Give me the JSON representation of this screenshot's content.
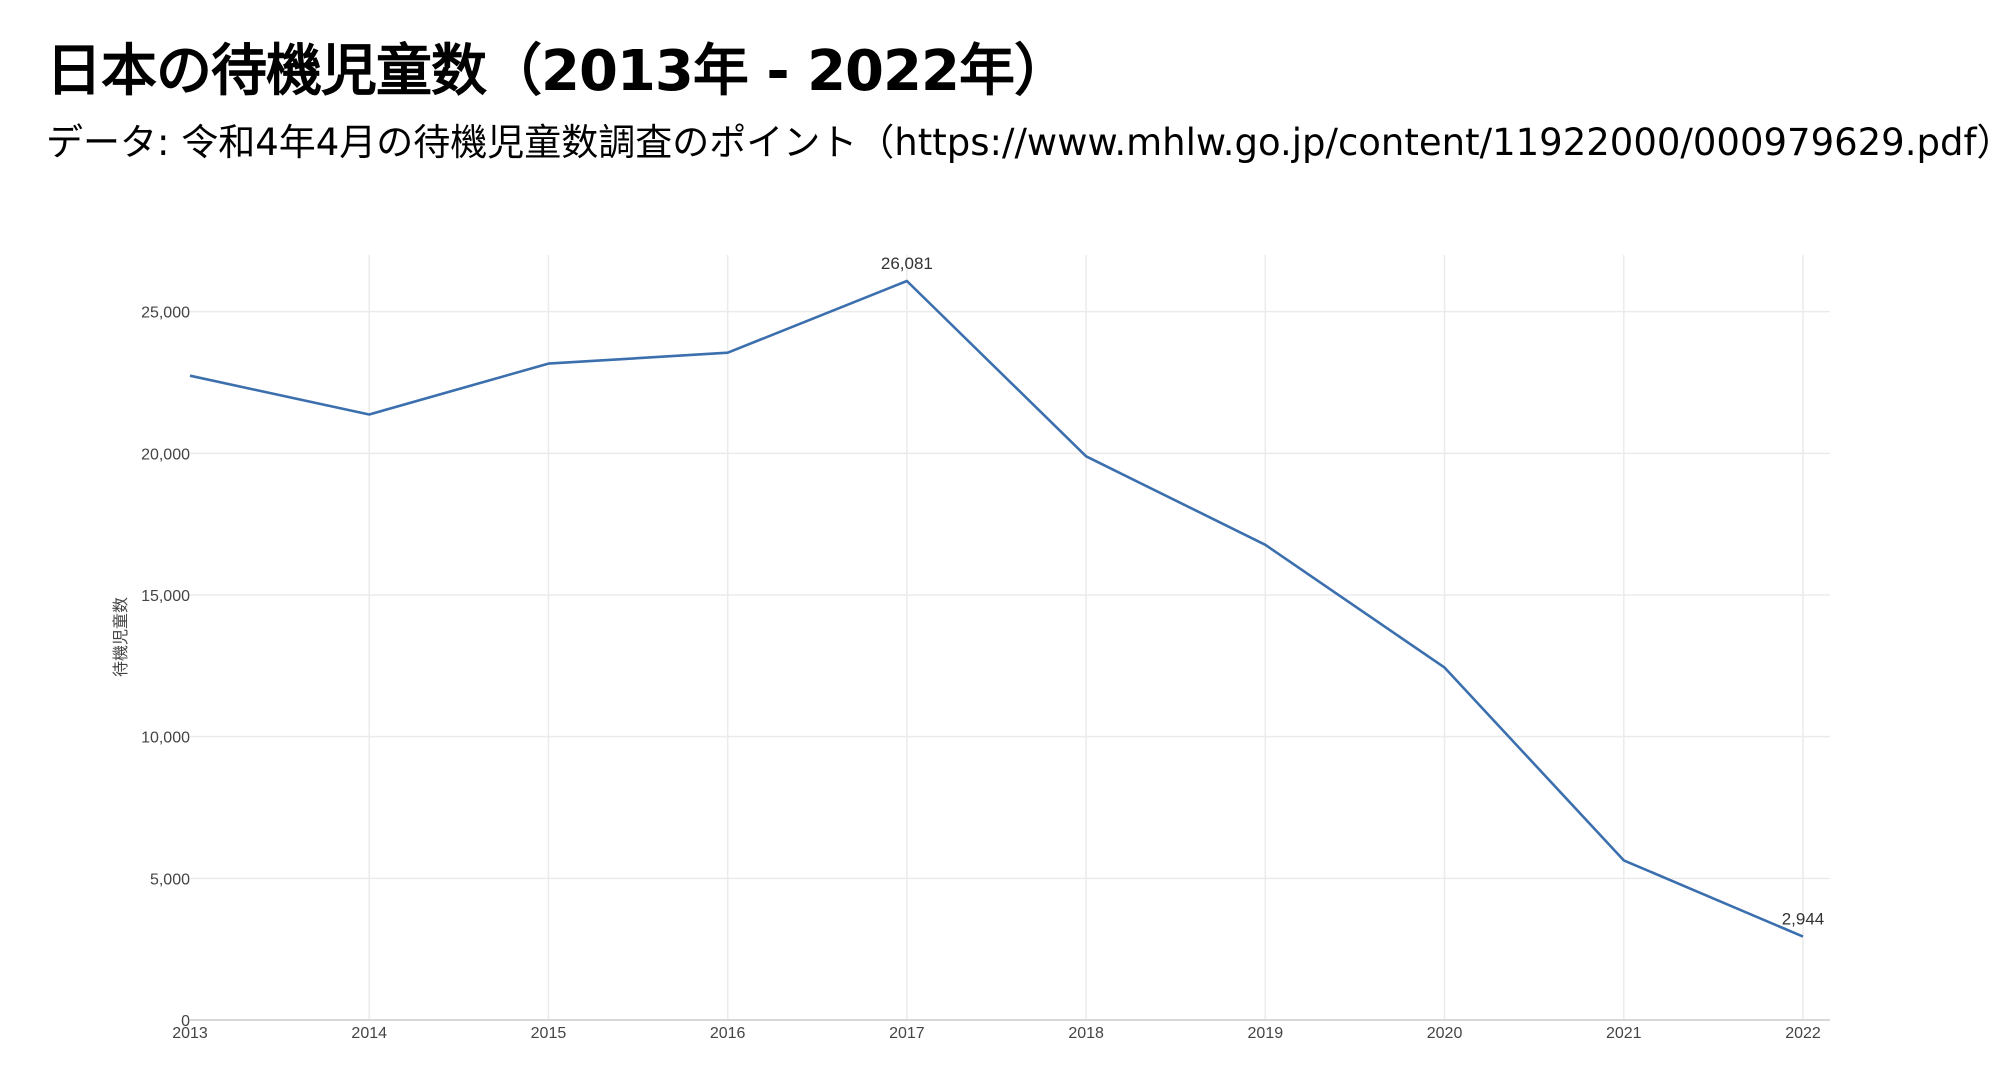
{
  "header": {
    "title": "日本の待機児童数（2013年 - 2022年）",
    "subtitle": "データ: 令和4年4月の待機児童数調査のポイント（https://www.mhlw.go.jp/content/11922000/000979629.pdf）"
  },
  "chart_data": {
    "type": "line",
    "x": [
      "2013",
      "2014",
      "2015",
      "2016",
      "2017",
      "2018",
      "2019",
      "2020",
      "2021",
      "2022"
    ],
    "series": [
      {
        "values": [
          22741,
          21371,
          23167,
          23553,
          26081,
          19895,
          16772,
          12439,
          5634,
          2944
        ],
        "color": "#3b6fad"
      }
    ],
    "xlabel": "",
    "ylabel": "待機児童数",
    "ylim": [
      0,
      27000
    ],
    "yticks": [
      0,
      5000,
      10000,
      15000,
      20000,
      25000
    ],
    "ytick_labels": [
      "0",
      "5,000",
      "10,000",
      "15,000",
      "20,000",
      "25,000"
    ],
    "data_labels": [
      {
        "x": "2017",
        "text": "26,081"
      },
      {
        "x": "2022",
        "text": "2,944"
      }
    ],
    "grid": true,
    "grid_color": "#ebebeb",
    "axis_color": "#cccccc"
  }
}
